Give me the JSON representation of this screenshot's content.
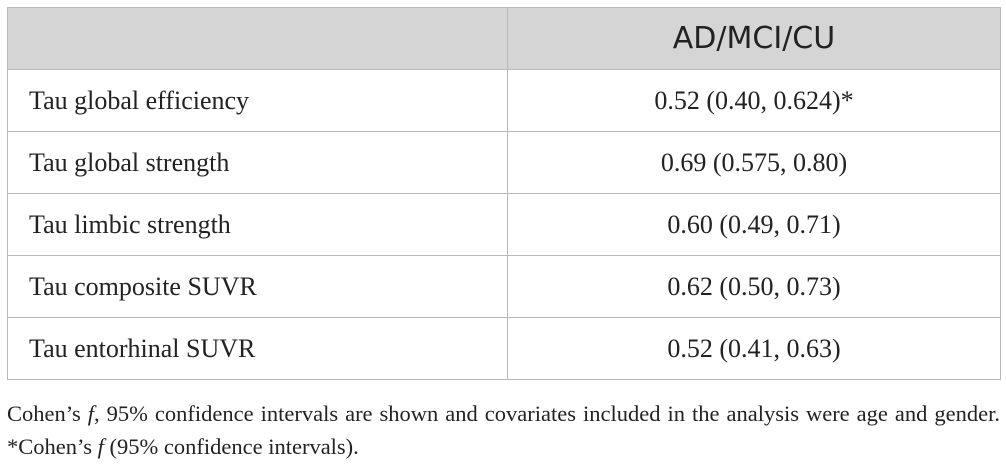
{
  "table": {
    "header": {
      "col1": "",
      "col2": "AD/MCI/CU"
    },
    "rows": [
      {
        "label": "Tau global efficiency",
        "value": "0.52 (0.40, 0.624)*"
      },
      {
        "label": "Tau global strength",
        "value": "0.69 (0.575, 0.80)"
      },
      {
        "label": "Tau limbic strength",
        "value": "0.60 (0.49, 0.71)"
      },
      {
        "label": "Tau composite SUVR",
        "value": "0.62 (0.50, 0.73)"
      },
      {
        "label": "Tau entorhinal SUVR",
        "value": "0.52 (0.41, 0.63)"
      }
    ]
  },
  "footnote": {
    "part1": "Cohen’s ",
    "f1": "f",
    "part2": ", 95% confidence intervals are shown and covariates included in the analysis were age and gender. *Cohen’s ",
    "f2": "f",
    "part3": " (95% confidence intervals)."
  }
}
